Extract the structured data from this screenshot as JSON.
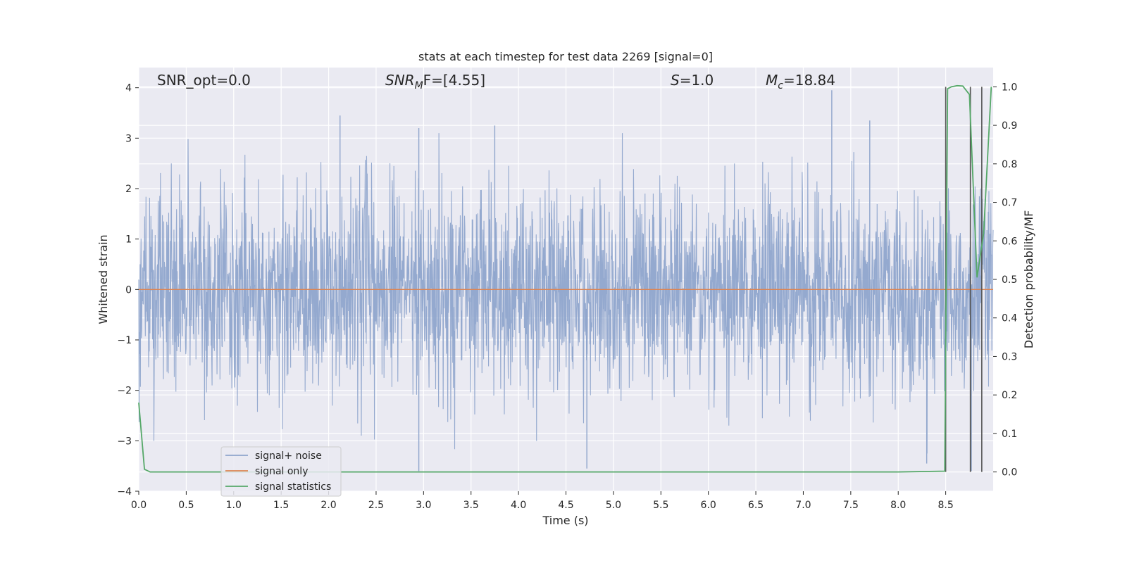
{
  "chart_data": {
    "type": "line",
    "title": "stats at each timestep for test data 2269 [signal=0]",
    "xlabel": "Time (s)",
    "ylabel": "Whitened strain",
    "y2label": "Detection probability/MF",
    "xlim": [
      0,
      9.0
    ],
    "ylim": [
      -4,
      4.4
    ],
    "y2lim": [
      -0.05,
      1.05
    ],
    "xticks": [
      "0.0",
      "0.5",
      "1.0",
      "1.5",
      "2.0",
      "2.5",
      "3.0",
      "3.5",
      "4.0",
      "4.5",
      "5.0",
      "5.5",
      "6.0",
      "6.5",
      "7.0",
      "7.5",
      "8.0",
      "8.5"
    ],
    "yticks": [
      "4",
      "3",
      "2",
      "1",
      "0",
      "−1",
      "−2",
      "−3",
      "−4"
    ],
    "y2ticks": [
      "1.0",
      "0.9",
      "0.8",
      "0.7",
      "0.6",
      "0.5",
      "0.4",
      "0.3",
      "0.2",
      "0.1",
      "0.0"
    ],
    "grid": true,
    "legend_position": "lower-left",
    "annotations": {
      "snr_opt": "SNR_opt=0.0",
      "snr_mf_main": "SNR",
      "snr_mf_sub": "M",
      "snr_mf_rest": "F=[4.55]",
      "s_main": "S",
      "s_rest": "=1.0",
      "mc_main": "M",
      "mc_sub": "c",
      "mc_rest": "=18.84"
    },
    "series": [
      {
        "name": "signal+ noise",
        "color": "#8fa5cc",
        "kind": "noise",
        "amplitude_std": 1.0,
        "peaks": [
          {
            "x": 2.12,
            "y": 3.45
          },
          {
            "x": 2.95,
            "y": 3.2
          },
          {
            "x": 3.75,
            "y": 3.25
          },
          {
            "x": 7.3,
            "y": 3.95
          },
          {
            "x": 7.7,
            "y": 3.35
          },
          {
            "x": 2.95,
            "y": -3.6
          },
          {
            "x": 4.72,
            "y": -3.55
          },
          {
            "x": 8.3,
            "y": -3.45
          },
          {
            "x": 8.77,
            "y": -3.6
          }
        ]
      },
      {
        "name": "signal only",
        "color": "#dd8452",
        "x": [
          0,
          9.0
        ],
        "y": [
          0,
          0
        ]
      },
      {
        "name": "signal statistics",
        "color": "#55a868",
        "axis": "y2",
        "x": [
          0.0,
          0.06,
          0.12,
          0.5,
          1.0,
          2.0,
          3.0,
          4.0,
          5.0,
          6.0,
          7.0,
          8.0,
          8.49,
          8.52,
          8.56,
          8.62,
          8.68,
          8.75,
          8.83,
          8.9,
          8.98
        ],
        "y": [
          0.18,
          0.007,
          0.0,
          0.0,
          0.0,
          0.0,
          0.0,
          0.0,
          0.0,
          0.0,
          0.0,
          0.0,
          0.002,
          0.995,
          1.0,
          1.003,
          1.002,
          0.98,
          0.505,
          0.62,
          1.0
        ]
      }
    ],
    "vlines": {
      "color": "#555555",
      "x": [
        8.5,
        8.76,
        8.88
      ]
    }
  }
}
